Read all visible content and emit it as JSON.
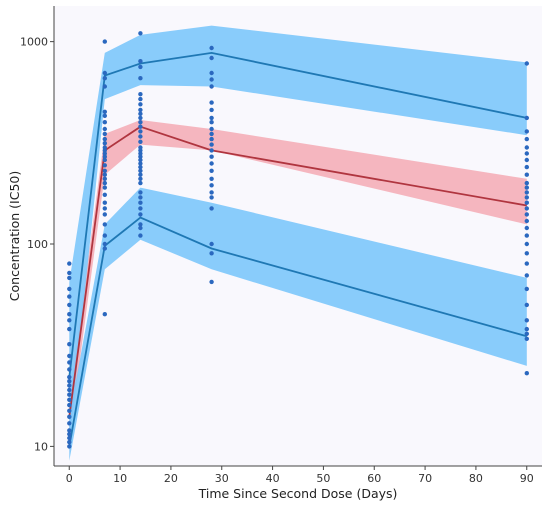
{
  "chart_data": {
    "type": "scatter",
    "title": "",
    "xlabel": "Time Since Second Dose (Days)",
    "ylabel": "Concentration (IC50)",
    "xlim": [
      -3,
      93
    ],
    "ylim": [
      8,
      1500
    ],
    "yscale": "log",
    "xticks": [
      0,
      10,
      20,
      30,
      40,
      50,
      60,
      70,
      80,
      90
    ],
    "yticks": [
      10,
      100,
      1000
    ],
    "grid": false,
    "legend": "none",
    "colors": {
      "plot_background": "#f9f8fd",
      "outer_band": "#7cc6fb",
      "median_band": "#f5aab4",
      "percentile_line": "#1f78b4",
      "median_line": "#b0353f",
      "points": "#2b68bf"
    },
    "bands": [
      {
        "x": [
          0,
          7,
          14,
          28,
          90
        ],
        "lower": [
          11,
          220,
          310,
          290,
          125
        ],
        "upper": [
          17,
          350,
          410,
          370,
          210
        ],
        "role": "median"
      },
      {
        "x": [
          0,
          7,
          14,
          28,
          90
        ],
        "lower": [
          10.5,
          520,
          610,
          600,
          345
        ],
        "upper": [
          65,
          880,
          1080,
          1200,
          790
        ],
        "role": "upper"
      },
      {
        "x": [
          0,
          7,
          14,
          28,
          90
        ],
        "lower": [
          8.5,
          75,
          105,
          75,
          25
        ],
        "upper": [
          14,
          125,
          190,
          160,
          68
        ],
        "role": "lower"
      }
    ],
    "lines": [
      {
        "x": [
          0,
          7,
          14,
          28,
          90
        ],
        "y": [
          14,
          290,
          380,
          290,
          155
        ],
        "role": "median"
      },
      {
        "x": [
          0,
          7,
          14,
          28,
          90
        ],
        "y": [
          22,
          680,
          780,
          880,
          420
        ],
        "role": "upper"
      },
      {
        "x": [
          0,
          7,
          14,
          28,
          90
        ],
        "y": [
          10,
          98,
          135,
          95,
          35
        ],
        "role": "lower"
      }
    ],
    "points": [
      {
        "x": 0,
        "y": [
          10,
          10.5,
          11,
          11.5,
          12,
          13,
          14,
          15,
          16,
          17,
          18,
          19,
          20,
          21,
          22,
          24,
          26,
          28,
          32,
          38,
          42,
          45,
          50,
          55,
          60,
          68,
          72,
          80
        ]
      },
      {
        "x": 7,
        "y": [
          45,
          95,
          100,
          110,
          125,
          140,
          150,
          160,
          175,
          190,
          200,
          210,
          220,
          230,
          245,
          260,
          270,
          280,
          290,
          300,
          315,
          330,
          350,
          370,
          400,
          430,
          450,
          600,
          660,
          700,
          1000
        ]
      },
      {
        "x": 14,
        "y": [
          110,
          120,
          125,
          140,
          150,
          160,
          170,
          180,
          200,
          210,
          220,
          230,
          240,
          250,
          260,
          270,
          280,
          290,
          300,
          320,
          340,
          360,
          380,
          400,
          420,
          440,
          460,
          490,
          520,
          550,
          660,
          750,
          800,
          1100
        ]
      },
      {
        "x": 28,
        "y": [
          65,
          90,
          100,
          150,
          170,
          180,
          195,
          210,
          230,
          250,
          270,
          290,
          310,
          330,
          350,
          370,
          400,
          420,
          460,
          500,
          600,
          650,
          700,
          830,
          930
        ]
      },
      {
        "x": 90,
        "y": [
          23,
          34,
          36,
          38,
          42,
          50,
          60,
          70,
          80,
          90,
          100,
          110,
          120,
          130,
          140,
          150,
          160,
          170,
          180,
          190,
          200,
          220,
          240,
          260,
          280,
          300,
          330,
          360,
          420,
          780
        ]
      }
    ]
  }
}
